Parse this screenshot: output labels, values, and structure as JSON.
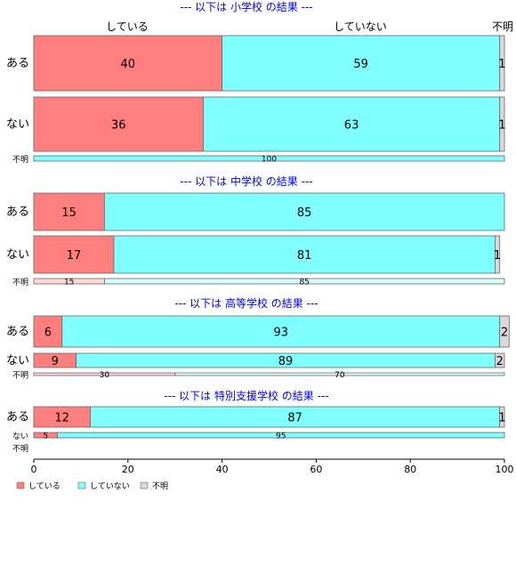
{
  "chart_data": {
    "type": "bar",
    "orientation": "horizontal",
    "stacked": "100%",
    "xlim": [
      0,
      100
    ],
    "x_ticks": [
      0,
      20,
      40,
      60,
      80,
      100
    ],
    "grid": false,
    "legend_position": "bottom-left",
    "column_headers": [
      "している",
      "していない",
      "不明"
    ],
    "series": [
      {
        "name": "している",
        "color": "#ff7f7f"
      },
      {
        "name": "していない",
        "color": "#7fffff"
      },
      {
        "name": "不明",
        "color": "#d9d9d9"
      }
    ],
    "panels": [
      {
        "title": "--- 以下は 小学校 の結果 ---",
        "rows": [
          {
            "label": "ある",
            "values": [
              40,
              59,
              1
            ]
          },
          {
            "label": "ない",
            "values": [
              36,
              63,
              1
            ]
          },
          {
            "label": "不明",
            "values": [
              0,
              100,
              0
            ]
          }
        ]
      },
      {
        "title": "--- 以下は 中学校 の結果 ---",
        "rows": [
          {
            "label": "ある",
            "values": [
              15,
              85,
              0
            ]
          },
          {
            "label": "ない",
            "values": [
              17,
              81,
              1
            ]
          },
          {
            "label": "不明",
            "values": [
              15,
              85,
              0
            ]
          }
        ]
      },
      {
        "title": "--- 以下は 高等学校 の結果 ---",
        "rows": [
          {
            "label": "ある",
            "values": [
              6,
              93,
              2
            ]
          },
          {
            "label": "ない",
            "values": [
              9,
              89,
              2
            ]
          },
          {
            "label": "不明",
            "values": [
              30,
              70,
              0
            ]
          }
        ]
      },
      {
        "title": "--- 以下は 特別支援学校 の結果 ---",
        "rows": [
          {
            "label": "ある",
            "values": [
              12,
              87,
              1
            ]
          },
          {
            "label": "ない",
            "values": [
              5,
              95,
              0
            ]
          },
          {
            "label": "不明",
            "values": [
              0,
              0,
              0
            ]
          }
        ]
      }
    ]
  }
}
